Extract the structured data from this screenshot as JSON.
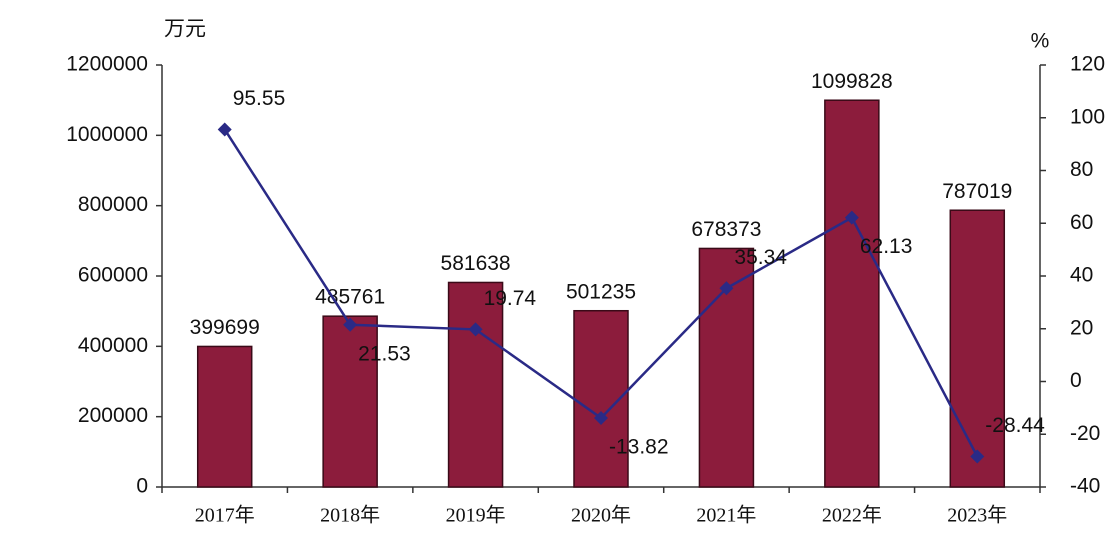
{
  "chart_data": {
    "type": "bar",
    "y_unit": "万元",
    "y2_unit": "%",
    "categories": [
      "2017年",
      "2018年",
      "2019年",
      "2020年",
      "2021年",
      "2022年",
      "2023年"
    ],
    "series": [
      {
        "type": "bar",
        "color": "#8c1c3c",
        "values": [
          399699,
          485761,
          581638,
          501235,
          678373,
          1099828,
          787019
        ]
      },
      {
        "type": "line",
        "axis": "y2",
        "color": "#2a2a86",
        "values": [
          95.55,
          21.53,
          19.74,
          -13.82,
          35.34,
          62.13,
          -28.44
        ]
      }
    ],
    "ylim": [
      0,
      1200000
    ],
    "yticks": [
      0,
      200000,
      400000,
      600000,
      800000,
      1000000,
      1200000
    ],
    "y2lim": [
      -40,
      120
    ],
    "y2ticks": [
      -40,
      -20,
      0,
      20,
      40,
      60,
      80,
      100,
      120
    ]
  }
}
